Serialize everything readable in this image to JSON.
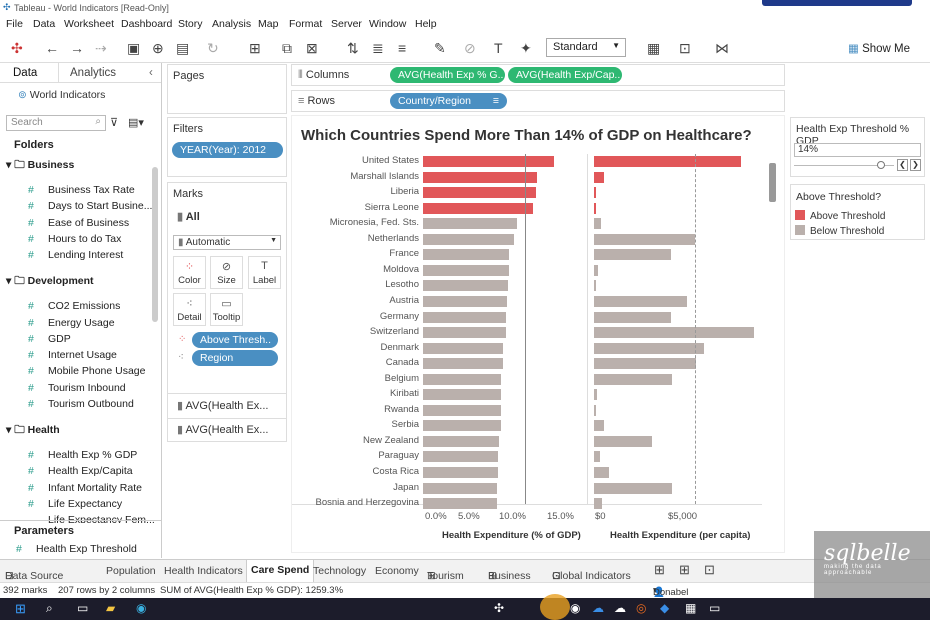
{
  "window": {
    "title": "Tableau - World Indicators [Read-Only]"
  },
  "menu": [
    "File",
    "Data",
    "Worksheet",
    "Dashboard",
    "Story",
    "Analysis",
    "Map",
    "Format",
    "Server",
    "Window",
    "Help"
  ],
  "toolbar": {
    "fit": "Standard",
    "show_me": "Show Me"
  },
  "left": {
    "tab_data": "Data",
    "tab_analytics": "Analytics",
    "datasource": "World Indicators",
    "search_placeholder": "Search",
    "folders": "Folders",
    "groups": [
      {
        "name": "Business",
        "fields": [
          "Business Tax Rate",
          "Days to Start Busine...",
          "Ease of Business",
          "Hours to do Tax",
          "Lending Interest"
        ]
      },
      {
        "name": "Development",
        "fields": [
          "CO2 Emissions",
          "Energy Usage",
          "GDP",
          "Internet Usage",
          "Mobile Phone Usage",
          "Tourism Inbound",
          "Tourism Outbound"
        ]
      },
      {
        "name": "Health",
        "fields": [
          "Health Exp % GDP",
          "Health Exp/Capita",
          "Infant Mortality Rate",
          "Life Expectancy",
          "Life Expectancy Fem..."
        ]
      }
    ],
    "parameters": "Parameters",
    "param_item": "Health Exp Threshold"
  },
  "pages": "Pages",
  "filters": {
    "label": "Filters",
    "year": "YEAR(Year): 2012"
  },
  "marks": {
    "label": "Marks",
    "all": "All",
    "type": "Automatic",
    "buttons": [
      "Color",
      "Size",
      "Label",
      "Detail",
      "Tooltip"
    ],
    "pills": [
      "Above Thresh..",
      "Region"
    ],
    "cards": [
      "AVG(Health Ex...",
      "AVG(Health Ex..."
    ]
  },
  "columns": {
    "label": "Columns",
    "pills": [
      "AVG(Health Exp % G..",
      "AVG(Health Exp/Cap.."
    ]
  },
  "rows": {
    "label": "Rows",
    "pill": "Country/Region"
  },
  "parameter_card": {
    "title": "Health Exp Threshold % GDP",
    "value": "14%"
  },
  "legend": {
    "title": "Above Threshold?",
    "items": [
      {
        "label": "Above Threshold",
        "color": "#e15759"
      },
      {
        "label": "Below Threshold",
        "color": "#bab0ac"
      }
    ]
  },
  "chart_data": {
    "type": "bar",
    "title": "Which Countries Spend More Than 14% of GDP on Healthcare?",
    "categories": [
      "United States",
      "Marshall Islands",
      "Liberia",
      "Sierra Leone",
      "Micronesia, Fed. Sts.",
      "Netherlands",
      "France",
      "Moldova",
      "Lesotho",
      "Austria",
      "Germany",
      "Switzerland",
      "Denmark",
      "Canada",
      "Belgium",
      "Kiribati",
      "Rwanda",
      "Serbia",
      "New Zealand",
      "Paraguay",
      "Costa Rica",
      "Japan",
      "Bosnia and Herzegovina"
    ],
    "above_threshold": [
      true,
      true,
      true,
      true,
      false,
      false,
      false,
      false,
      false,
      false,
      false,
      false,
      false,
      false,
      false,
      false,
      false,
      false,
      false,
      false,
      false,
      false,
      false
    ],
    "series": [
      {
        "name": "Health Expenditure (% of GDP)",
        "values": [
          17.9,
          15.6,
          15.5,
          15.1,
          12.9,
          12.4,
          11.7,
          11.7,
          11.6,
          11.5,
          11.3,
          11.3,
          11.0,
          10.9,
          10.7,
          10.7,
          10.6,
          10.6,
          10.4,
          10.3,
          10.2,
          10.1,
          10.1
        ],
        "ticks": [
          "0.0%",
          "5.0%",
          "10.0%",
          "15.0%"
        ],
        "xlim": [
          0,
          21
        ]
      },
      {
        "name": "Health Expenditure (per capita)",
        "values": [
          8895,
          627,
          65,
          96,
          430,
          6145,
          4690,
          240,
          140,
          5650,
          4683,
          9675,
          6650,
          6200,
          4711,
          210,
          70,
          600,
          3510,
          380,
          900,
          4752,
          460
        ],
        "ticks": [
          "$0",
          "$5,000"
        ],
        "xlim": [
          0,
          10000
        ]
      }
    ],
    "threshold": 14
  },
  "sheets": [
    "Data Source",
    "Population",
    "Health Indicators",
    "Care Spend",
    "Technology",
    "Economy",
    "Tourism",
    "Business",
    "Global Indicators"
  ],
  "active_sheet": "Care Spend",
  "status": {
    "marks": "392 marks",
    "rows": "207 rows by 2 columns",
    "sum": "SUM of AVG(Health Exp % GDP): 1259.3%",
    "user": "Donabel Sant..."
  },
  "watermark": {
    "text": "sqlbelle",
    "sub": "making the data approachable"
  }
}
